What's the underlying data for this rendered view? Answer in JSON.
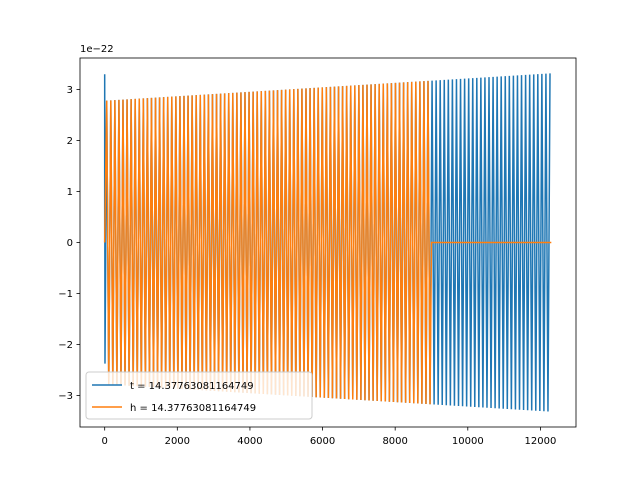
{
  "chart_data": {
    "type": "line",
    "title": "",
    "xlabel": "",
    "ylabel": "",
    "y_scale_label": "1e−22",
    "xlim": [
      -680,
      12980
    ],
    "ylim": [
      -3.62,
      3.62
    ],
    "grid": false,
    "legend_position": "lower-left",
    "x_ticks": [
      0,
      2000,
      4000,
      6000,
      8000,
      10000,
      12000
    ],
    "x_tick_labels": [
      "0",
      "2000",
      "4000",
      "6000",
      "8000",
      "10000",
      "12000"
    ],
    "y_ticks": [
      -3,
      -2,
      -1,
      0,
      1,
      2,
      3
    ],
    "y_tick_labels": [
      "−3",
      "−2",
      "−1",
      "0",
      "1",
      "2",
      "3"
    ],
    "series": [
      {
        "name": "t = 14.37763081164749",
        "color": "#1f77b4",
        "x_start": 0,
        "x_end": 12300,
        "amplitude_start": 2.78,
        "amplitude_end": 3.32,
        "initial_spike": 3.3,
        "zero_after": null
      },
      {
        "name": "h = 14.37763081164749",
        "color": "#ff7f0e",
        "x_start": 0,
        "x_end": 12300,
        "amplitude_start": 2.78,
        "amplitude_end": 3.32,
        "initial_spike": null,
        "zero_after": 9000
      }
    ]
  }
}
